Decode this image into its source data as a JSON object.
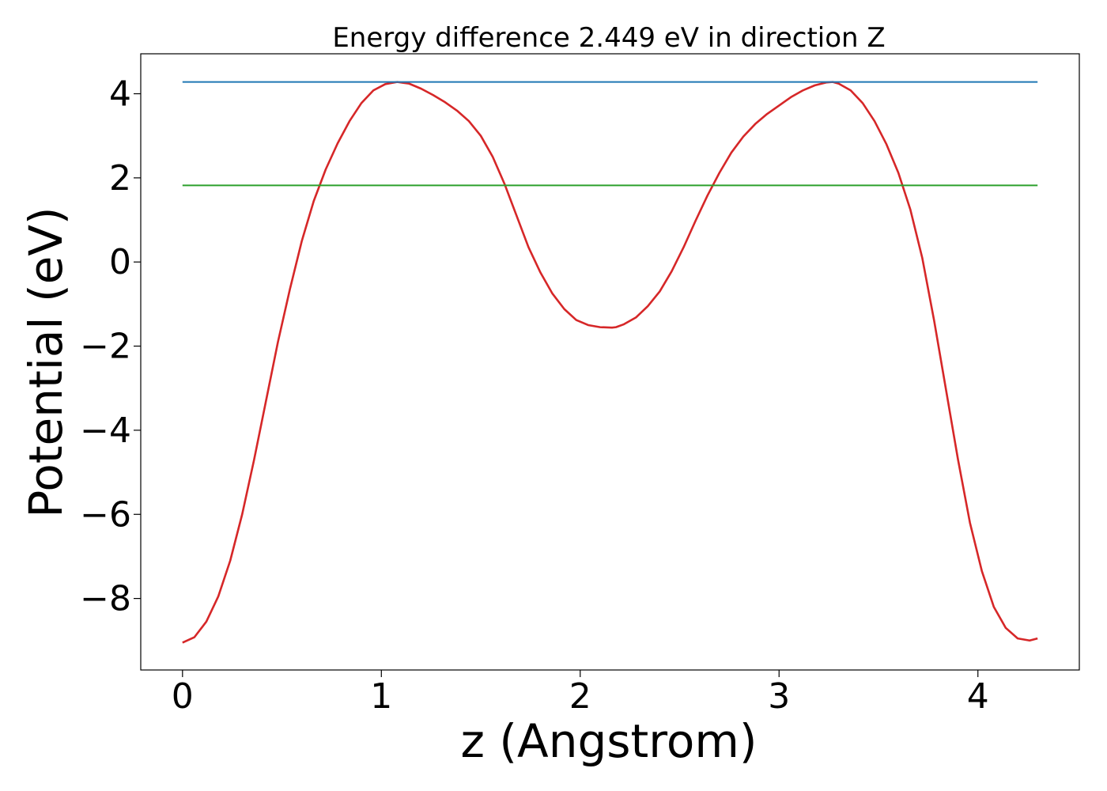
{
  "chart_data": {
    "type": "line",
    "title": "Energy difference 2.449 eV in direction Z",
    "xlabel": "z (Angstrom)",
    "ylabel": "Potential (eV)",
    "xlim": [
      -0.21,
      4.51
    ],
    "ylim": [
      -9.7,
      4.95
    ],
    "xticks": [
      0,
      1,
      2,
      3,
      4
    ],
    "xtick_labels": [
      "0",
      "1",
      "2",
      "3",
      "4"
    ],
    "yticks": [
      -8,
      -6,
      -4,
      -2,
      0,
      2,
      4
    ],
    "ytick_labels": [
      "−8",
      "−6",
      "−4",
      "−2",
      "0",
      "2",
      "4"
    ],
    "grid": false,
    "series": [
      {
        "color": "#d62728",
        "x": [
          0,
          0.06,
          0.12,
          0.18,
          0.24,
          0.3,
          0.36,
          0.42,
          0.48,
          0.54,
          0.6,
          0.66,
          0.72,
          0.78,
          0.84,
          0.9,
          0.96,
          1.02,
          1.08,
          1.14,
          1.2,
          1.26,
          1.32,
          1.38,
          1.44,
          1.5,
          1.56,
          1.62,
          1.68,
          1.74,
          1.8,
          1.86,
          1.92,
          1.98,
          2.04,
          2.1,
          2.16,
          2.18,
          2.22,
          2.28,
          2.34,
          2.4,
          2.46,
          2.52,
          2.58,
          2.64,
          2.7,
          2.76,
          2.82,
          2.88,
          2.94,
          3.0,
          3.06,
          3.12,
          3.18,
          3.24,
          3.27,
          3.3,
          3.36,
          3.42,
          3.48,
          3.54,
          3.6,
          3.66,
          3.72,
          3.78,
          3.84,
          3.9,
          3.96,
          4.02,
          4.08,
          4.14,
          4.2,
          4.26,
          4.3
        ],
        "y": [
          -9.05,
          -8.92,
          -8.55,
          -7.95,
          -7.1,
          -6.0,
          -4.7,
          -3.3,
          -1.9,
          -0.65,
          0.5,
          1.45,
          2.2,
          2.82,
          3.35,
          3.78,
          4.08,
          4.23,
          4.28,
          4.24,
          4.12,
          3.97,
          3.8,
          3.6,
          3.35,
          3.0,
          2.5,
          1.85,
          1.1,
          0.35,
          -0.25,
          -0.75,
          -1.12,
          -1.38,
          -1.5,
          -1.55,
          -1.56,
          -1.55,
          -1.48,
          -1.32,
          -1.05,
          -0.7,
          -0.22,
          0.35,
          0.98,
          1.58,
          2.12,
          2.6,
          2.98,
          3.28,
          3.52,
          3.72,
          3.92,
          4.08,
          4.2,
          4.27,
          4.28,
          4.24,
          4.08,
          3.78,
          3.35,
          2.8,
          2.12,
          1.25,
          0.1,
          -1.4,
          -3.05,
          -4.7,
          -6.2,
          -7.35,
          -8.2,
          -8.7,
          -8.95,
          -9.0,
          -8.95
        ]
      },
      {
        "color": "#1f77b4",
        "x": [
          0,
          4.3
        ],
        "y": [
          4.28,
          4.28
        ]
      },
      {
        "color": "#2ca02c",
        "x": [
          0,
          4.3
        ],
        "y": [
          1.82,
          1.82
        ]
      }
    ]
  }
}
